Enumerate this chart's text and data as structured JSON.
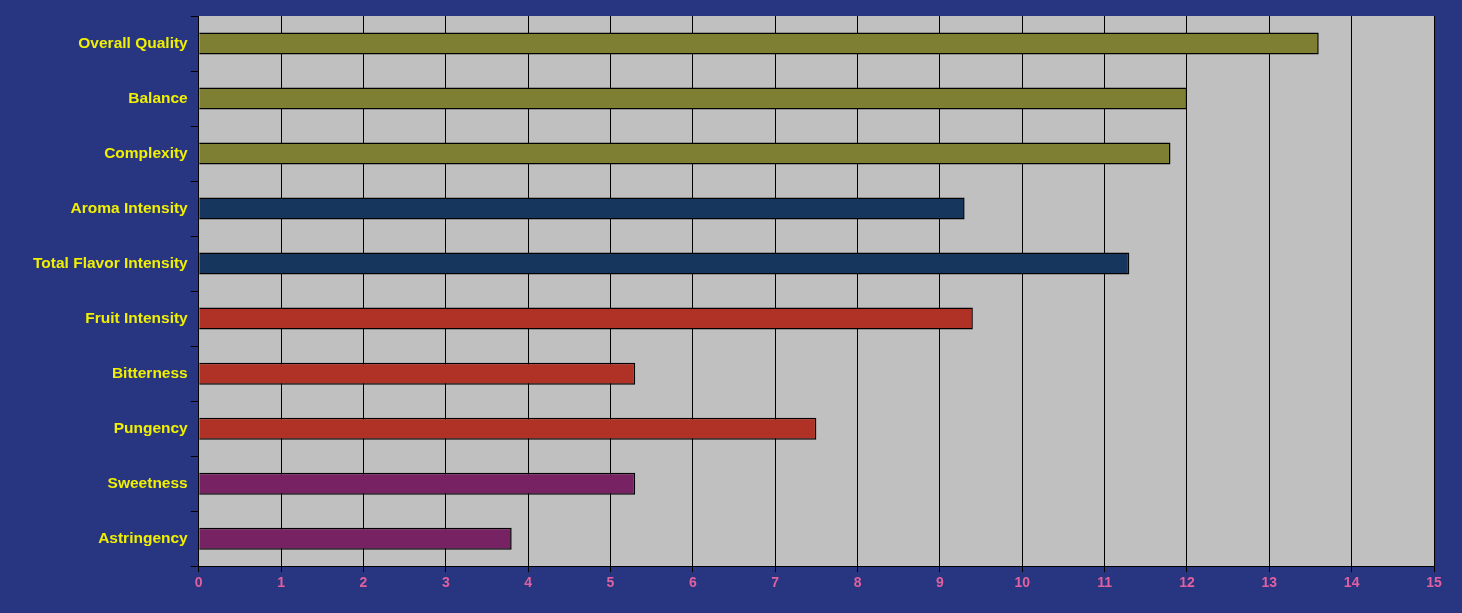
{
  "chart_data": {
    "type": "bar",
    "orientation": "horizontal",
    "categories": [
      "Overall Quality",
      "Balance",
      "Complexity",
      "Aroma Intensity",
      "Total Flavor Intensity",
      "Fruit Intensity",
      "Bitterness",
      "Pungency",
      "Sweetness",
      "Astringency"
    ],
    "values": [
      13.6,
      12.0,
      11.8,
      9.3,
      11.3,
      9.4,
      5.3,
      7.5,
      5.3,
      3.8
    ],
    "colors": [
      "#7f7f33",
      "#7f7f33",
      "#7f7f33",
      "#17365d",
      "#17365d",
      "#b03226",
      "#b03226",
      "#b03226",
      "#772363",
      "#772363"
    ],
    "xlim": [
      0,
      15
    ],
    "xticks": [
      0,
      1,
      2,
      3,
      4,
      5,
      6,
      7,
      8,
      9,
      10,
      11,
      12,
      13,
      14,
      15
    ],
    "grid": "x",
    "legend": false
  }
}
